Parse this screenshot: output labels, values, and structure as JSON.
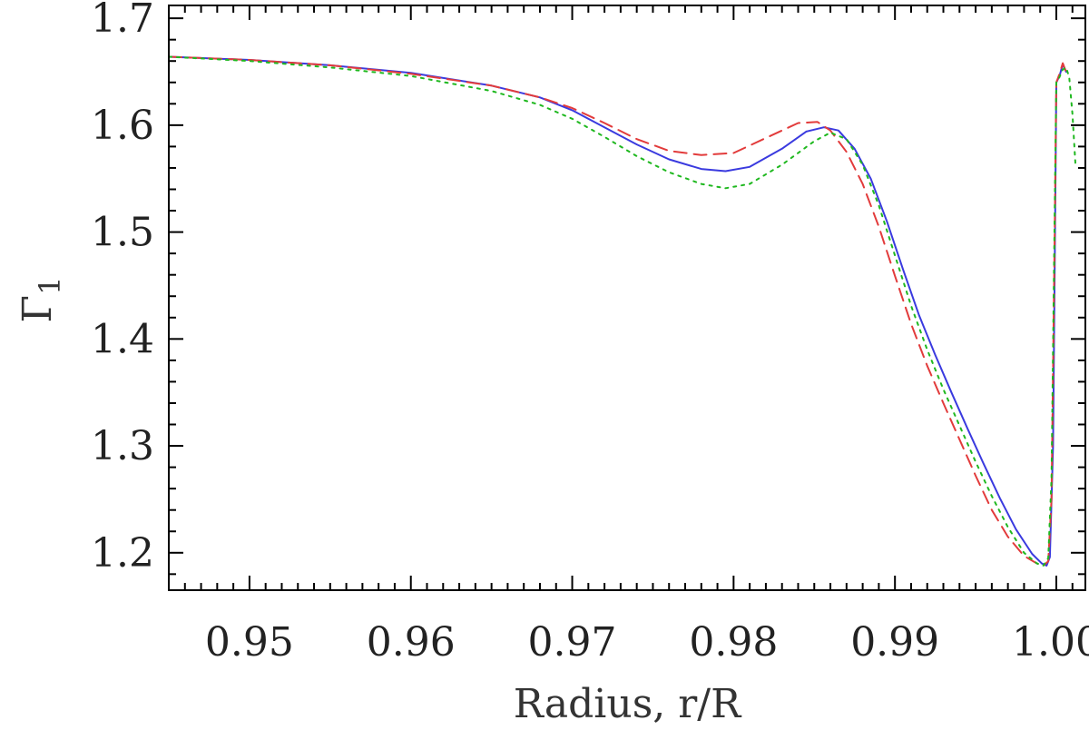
{
  "chart_data": {
    "type": "line",
    "title": "",
    "xlabel": "Radius, r/R",
    "ylabel_base": "Γ",
    "ylabel_sub": "1",
    "xlim": [
      0.945,
      1.0018
    ],
    "ylim": [
      1.165,
      1.712
    ],
    "xticks": [
      0.95,
      0.96,
      0.97,
      0.98,
      0.99,
      1.0
    ],
    "xtick_labels": [
      "0.95",
      "0.96",
      "0.97",
      "0.98",
      "0.99",
      "1.00"
    ],
    "yticks": [
      1.2,
      1.3,
      1.4,
      1.5,
      1.6,
      1.7
    ],
    "ytick_labels": [
      "1.2",
      "1.3",
      "1.4",
      "1.5",
      "1.6",
      "1.7"
    ],
    "grid": false,
    "series": [
      {
        "color": "#3a3adf",
        "style": "solid",
        "x": [
          0.945,
          0.95,
          0.955,
          0.96,
          0.965,
          0.968,
          0.97,
          0.972,
          0.974,
          0.976,
          0.978,
          0.9795,
          0.981,
          0.983,
          0.9845,
          0.9856,
          0.9865,
          0.9875,
          0.9885,
          0.9895,
          0.9905,
          0.9915,
          0.9925,
          0.9935,
          0.9945,
          0.9955,
          0.9965,
          0.9975,
          0.9985,
          0.9991,
          0.9994,
          0.9996,
          0.9998,
          0.99995,
          1.0,
          1.0002,
          1.0004,
          1.0006
        ],
        "y": [
          1.664,
          1.661,
          1.656,
          1.649,
          1.637,
          1.626,
          1.614,
          1.598,
          1.582,
          1.568,
          1.559,
          1.557,
          1.561,
          1.578,
          1.594,
          1.598,
          1.595,
          1.578,
          1.55,
          1.51,
          1.465,
          1.422,
          1.385,
          1.35,
          1.316,
          1.283,
          1.251,
          1.222,
          1.199,
          1.19,
          1.188,
          1.196,
          1.3,
          1.55,
          1.64,
          1.646,
          1.657,
          1.65
        ]
      },
      {
        "color": "#e23b3b",
        "style": "dashed",
        "x": [
          0.945,
          0.95,
          0.955,
          0.96,
          0.965,
          0.968,
          0.97,
          0.972,
          0.974,
          0.976,
          0.978,
          0.98,
          0.982,
          0.984,
          0.9852,
          0.986,
          0.987,
          0.988,
          0.989,
          0.99,
          0.991,
          0.992,
          0.993,
          0.994,
          0.995,
          0.996,
          0.997,
          0.998,
          0.9988,
          0.9992,
          0.9995,
          0.9997,
          0.9999,
          1.0,
          1.0002,
          1.0004,
          1.0006
        ],
        "y": [
          1.664,
          1.661,
          1.656,
          1.648,
          1.637,
          1.626,
          1.616,
          1.602,
          1.587,
          1.576,
          1.572,
          1.574,
          1.588,
          1.602,
          1.603,
          1.595,
          1.575,
          1.545,
          1.505,
          1.459,
          1.414,
          1.375,
          1.34,
          1.306,
          1.272,
          1.24,
          1.215,
          1.197,
          1.19,
          1.188,
          1.192,
          1.25,
          1.5,
          1.64,
          1.648,
          1.658,
          1.65
        ]
      },
      {
        "color": "#1fb81f",
        "style": "dotted",
        "x": [
          0.945,
          0.95,
          0.955,
          0.96,
          0.965,
          0.968,
          0.97,
          0.972,
          0.974,
          0.976,
          0.978,
          0.9795,
          0.981,
          0.983,
          0.985,
          0.986,
          0.987,
          0.988,
          0.989,
          0.99,
          0.991,
          0.992,
          0.993,
          0.994,
          0.995,
          0.996,
          0.997,
          0.998,
          0.9988,
          0.9992,
          0.9995,
          0.9997,
          0.9999,
          1.0,
          1.0002,
          1.0004,
          1.0006,
          1.0008,
          1.001,
          1.0012
        ],
        "y": [
          1.664,
          1.66,
          1.654,
          1.646,
          1.632,
          1.619,
          1.606,
          1.589,
          1.571,
          1.556,
          1.545,
          1.541,
          1.545,
          1.563,
          1.585,
          1.593,
          1.587,
          1.563,
          1.525,
          1.478,
          1.431,
          1.39,
          1.353,
          1.319,
          1.285,
          1.253,
          1.224,
          1.2,
          1.19,
          1.188,
          1.195,
          1.27,
          1.52,
          1.64,
          1.645,
          1.652,
          1.654,
          1.645,
          1.61,
          1.56
        ]
      }
    ]
  }
}
